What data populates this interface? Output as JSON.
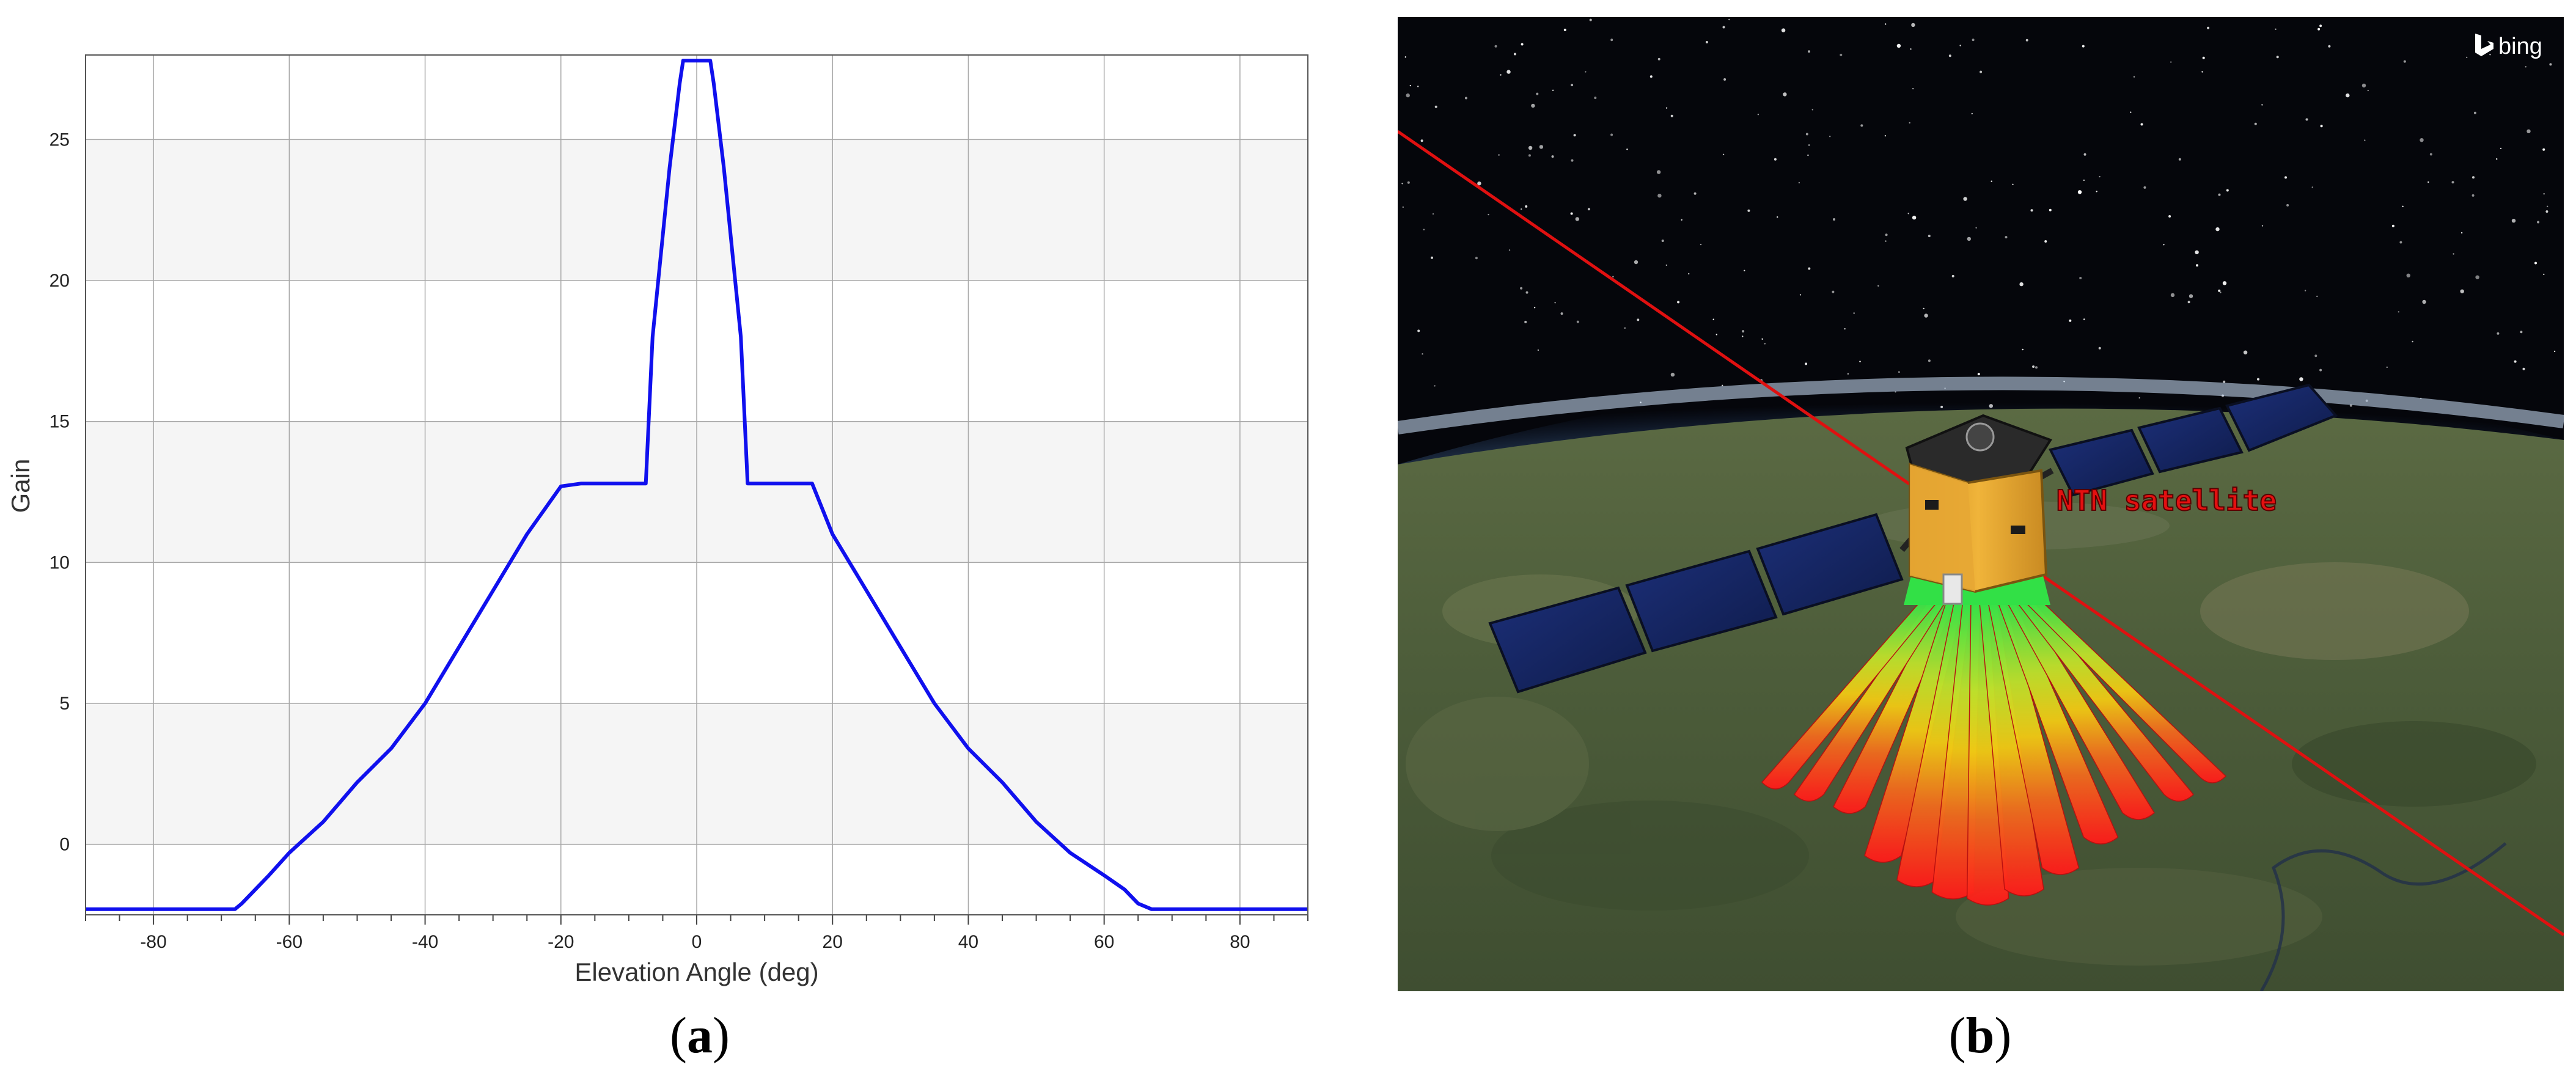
{
  "panels": {
    "a": {
      "open": "(",
      "letter": "a",
      "close": ")"
    },
    "b": {
      "open": "(",
      "letter": "b",
      "close": ")"
    }
  },
  "chart_data": {
    "type": "line",
    "title": "",
    "xlabel": "Elevation Angle (deg)",
    "ylabel": "Gain",
    "xlim": [
      -90,
      90
    ],
    "ylim": [
      -2.5,
      28
    ],
    "xticks": [
      -80,
      -60,
      -40,
      -20,
      0,
      20,
      40,
      60,
      80
    ],
    "yticks": [
      0,
      5,
      10,
      15,
      20,
      25
    ],
    "grid": true,
    "alternating_bands": true,
    "series": [
      {
        "color": "#1010ee",
        "x": [
          -90,
          -68,
          -67,
          -65,
          -63,
          -60,
          -55,
          -50,
          -45,
          -40,
          -35,
          -30,
          -25,
          -20,
          -17,
          -16,
          -7.5,
          -6.5,
          -4,
          -2.5,
          -2,
          2,
          2.5,
          4,
          6.5,
          7.5,
          16,
          17,
          20,
          25,
          30,
          35,
          40,
          45,
          50,
          55,
          60,
          63,
          65,
          67,
          68,
          90
        ],
        "y": [
          -2.3,
          -2.3,
          -2.1,
          -1.6,
          -1.1,
          -0.3,
          0.8,
          2.2,
          3.4,
          5.0,
          7.0,
          9.0,
          11.0,
          12.7,
          12.8,
          12.8,
          12.8,
          18.0,
          24.0,
          27.0,
          27.8,
          27.8,
          27.0,
          24.0,
          18.0,
          12.8,
          12.8,
          12.8,
          11.0,
          9.0,
          7.0,
          5.0,
          3.4,
          2.2,
          0.8,
          -0.3,
          -1.1,
          -1.6,
          -2.1,
          -2.3,
          -2.3,
          -2.3
        ]
      }
    ]
  },
  "scene": {
    "satellite_label": "NTN satellite",
    "watermark": "bing",
    "colors": {
      "space": "#05060b",
      "earth": "#4a5a38",
      "atmosphere": "#9cc6ee",
      "orbit_line": "#e01010",
      "label": "#e41010",
      "body": "#e3a22a",
      "panel": "#14245e"
    },
    "beam_colors": [
      "#2ee24a",
      "#bde02c",
      "#f0c814",
      "#ef6a1e",
      "#ff1a1a"
    ]
  }
}
